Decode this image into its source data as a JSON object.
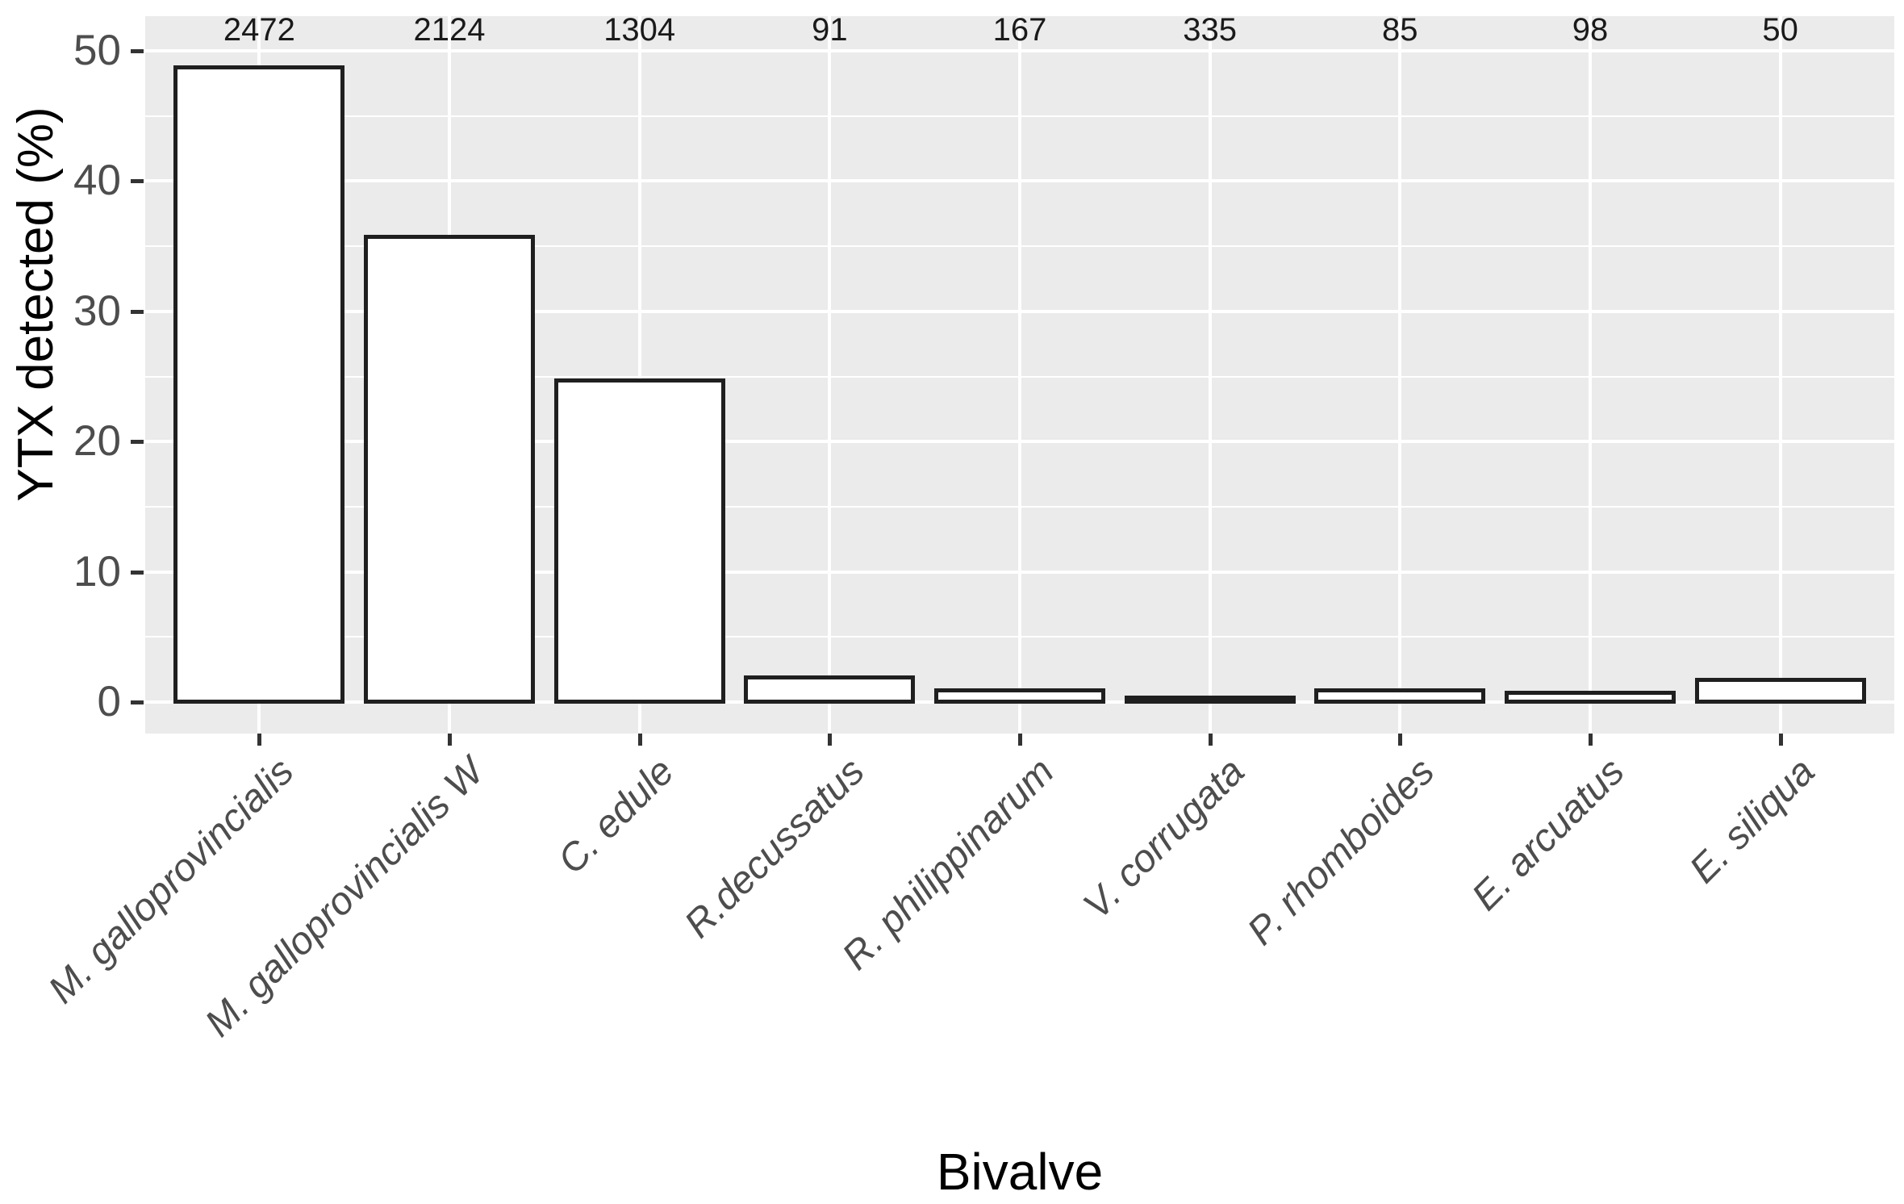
{
  "chart_data": {
    "type": "bar",
    "title": "",
    "xlabel": "Bivalve",
    "ylabel": "YTX detected (%)",
    "categories": [
      "M. galloprovincialis",
      "M. galloprovincialis W",
      "C. edule",
      "R.decussatus",
      "R. philippinarum",
      "V. corrugata",
      "P. rhomboides",
      "E. arcuatus",
      "E. siliqua"
    ],
    "values": [
      49,
      36,
      25,
      2.2,
      1.2,
      0.3,
      1.2,
      1.0,
      2.0
    ],
    "bar_top_counts": [
      2472,
      2124,
      1304,
      91,
      167,
      335,
      85,
      98,
      50
    ],
    "yticks_major": [
      0,
      10,
      20,
      30,
      40,
      50
    ],
    "yticks_minor": [
      5,
      15,
      25,
      35,
      45
    ],
    "ylim": [
      0,
      50
    ],
    "grid": true,
    "legend": "none",
    "style": {
      "panel_bg": "#ebebeb",
      "grid_color": "#ffffff",
      "bar_fill": "#ffffff",
      "bar_stroke": "#1f1f1f",
      "tick_text_color": "#4d4d4d",
      "count_text_color": "#1a1a1a",
      "axis_title_color": "#000000",
      "tick_mark_color": "#333333"
    }
  }
}
